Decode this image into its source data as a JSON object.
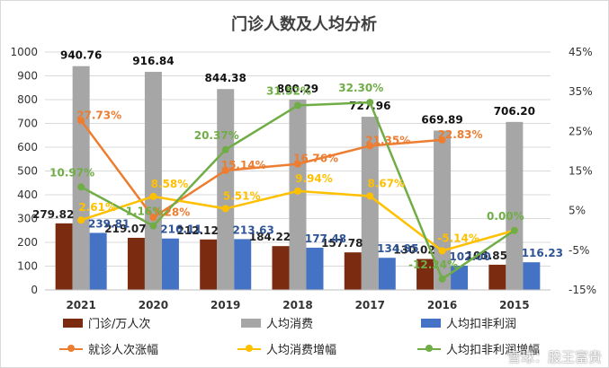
{
  "chart_data": {
    "type": "bar",
    "title": "门诊人数及人均分析",
    "categories": [
      "2021",
      "2020",
      "2019",
      "2018",
      "2017",
      "2016",
      "2015"
    ],
    "left_axis": {
      "ticks": [
        "0",
        "100",
        "200",
        "300",
        "400",
        "500",
        "600",
        "700",
        "800",
        "900",
        "1000"
      ],
      "ylim": [
        0,
        1000
      ]
    },
    "right_axis": {
      "ticks": [
        "-15%",
        "-5%",
        "5%",
        "15%",
        "25%",
        "35%",
        "45%"
      ],
      "ylim": [
        -15,
        45
      ]
    },
    "bar_series": [
      {
        "name": "门诊/万人次",
        "color": "#7b2c10",
        "values": [
          279.82,
          219.07,
          212.12,
          184.22,
          157.78,
          130.02,
          105.85
        ],
        "labels": [
          "279.82",
          "219.07",
          "212.12",
          "184.22",
          "157.78",
          "130.02",
          "105.85"
        ]
      },
      {
        "name": "人均消费",
        "color": "#a6a6a6",
        "values": [
          940.76,
          916.84,
          844.38,
          800.29,
          727.96,
          669.89,
          706.2
        ],
        "labels": [
          "940.76",
          "916.84",
          "844.38",
          "800.29",
          "727.96",
          "669.89",
          "706.20"
        ]
      },
      {
        "name": "人均扣非利润",
        "color": "#4472c4",
        "values": [
          239.81,
          216.11,
          213.63,
          177.48,
          134.95,
          102.0,
          116.23
        ],
        "labels": [
          "239.81",
          "216.11",
          "213.63",
          "177.48",
          "134.95",
          "102.00",
          "116.23"
        ]
      }
    ],
    "line_series": [
      {
        "name": "就诊人次涨幅",
        "color": "#ed7d31",
        "values": [
          27.73,
          3.28,
          15.14,
          16.76,
          21.35,
          22.83,
          null
        ],
        "labels": [
          "27.73%",
          "3.28%",
          "15.14%",
          "16.76%",
          "21.35%",
          "22.83%",
          ""
        ]
      },
      {
        "name": "人均消费增幅",
        "color": "#ffc000",
        "values": [
          2.61,
          8.58,
          5.51,
          9.94,
          8.67,
          -5.14,
          0.0
        ],
        "labels": [
          "2.61%",
          "8.58%",
          "5.51%",
          "9.94%",
          "8.67%",
          "-5.14%",
          ""
        ]
      },
      {
        "name": "人均扣非利润增幅",
        "color": "#70ad47",
        "values": [
          10.97,
          1.16,
          20.37,
          31.52,
          32.3,
          -12.24,
          0.0
        ],
        "labels": [
          "10.97%",
          "1.16%",
          "20.37%",
          "31.52%",
          "32.30%",
          "-12.24%",
          "0.00%"
        ]
      }
    ],
    "legend_placement": "bottom",
    "grid": true
  },
  "watermark": "雪球：股王富贵"
}
